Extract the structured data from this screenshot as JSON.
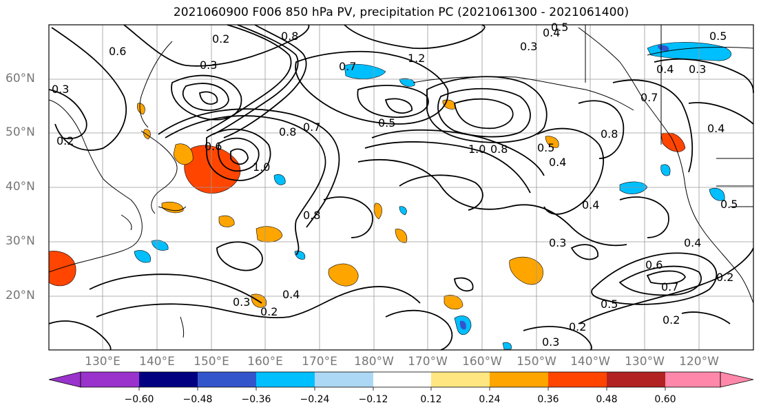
{
  "title": "2021060900 F006 850 hPa PV, precipitation PC (2021061300 - 2021061400)",
  "lat_labels": [
    "60°N",
    "50°N",
    "40°N",
    "30°N",
    "20°N"
  ],
  "lon_labels": [
    "130°E",
    "140°E",
    "150°E",
    "160°E",
    "170°E",
    "180°W",
    "170°W",
    "160°W",
    "150°W",
    "140°W",
    "130°W",
    "120°W"
  ],
  "colorbar": {
    "ticks": [
      "−0.60",
      "−0.48",
      "−0.36",
      "−0.24",
      "−0.12",
      "0.12",
      "0.24",
      "0.36",
      "0.48",
      "0.60"
    ],
    "colors": [
      "#9933cc",
      "#000080",
      "#3355cc",
      "#00bfff",
      "#add8f5",
      "#ffffff",
      "#ffe680",
      "#ffa500",
      "#ff4500",
      "#b22222",
      "#ff88aa"
    ]
  },
  "contour_labels": [
    "0.8",
    "0.6",
    "0.5",
    "0.2",
    "0.3",
    "0.4",
    "0.7",
    "1.2",
    "0.5",
    "0.4",
    "0.3",
    "0.5",
    "0.4",
    "0.2",
    "0.3",
    "0.7",
    "0.8",
    "1.0",
    "0.8",
    "0.4",
    "0.8",
    "0.4",
    "0.3",
    "0.6",
    "0.7",
    "0.5",
    "0.4",
    "0.3",
    "0.2",
    "0.2",
    "0.3",
    "0.2",
    "0.4",
    "0.6",
    "1.0",
    "0.5",
    "0.8",
    "0.5",
    "0.7",
    "0.3",
    "0.2"
  ],
  "precip_positive_color": "#ffa500",
  "precip_strong_color": "#ff4500",
  "precip_negative_color": "#00bfff"
}
